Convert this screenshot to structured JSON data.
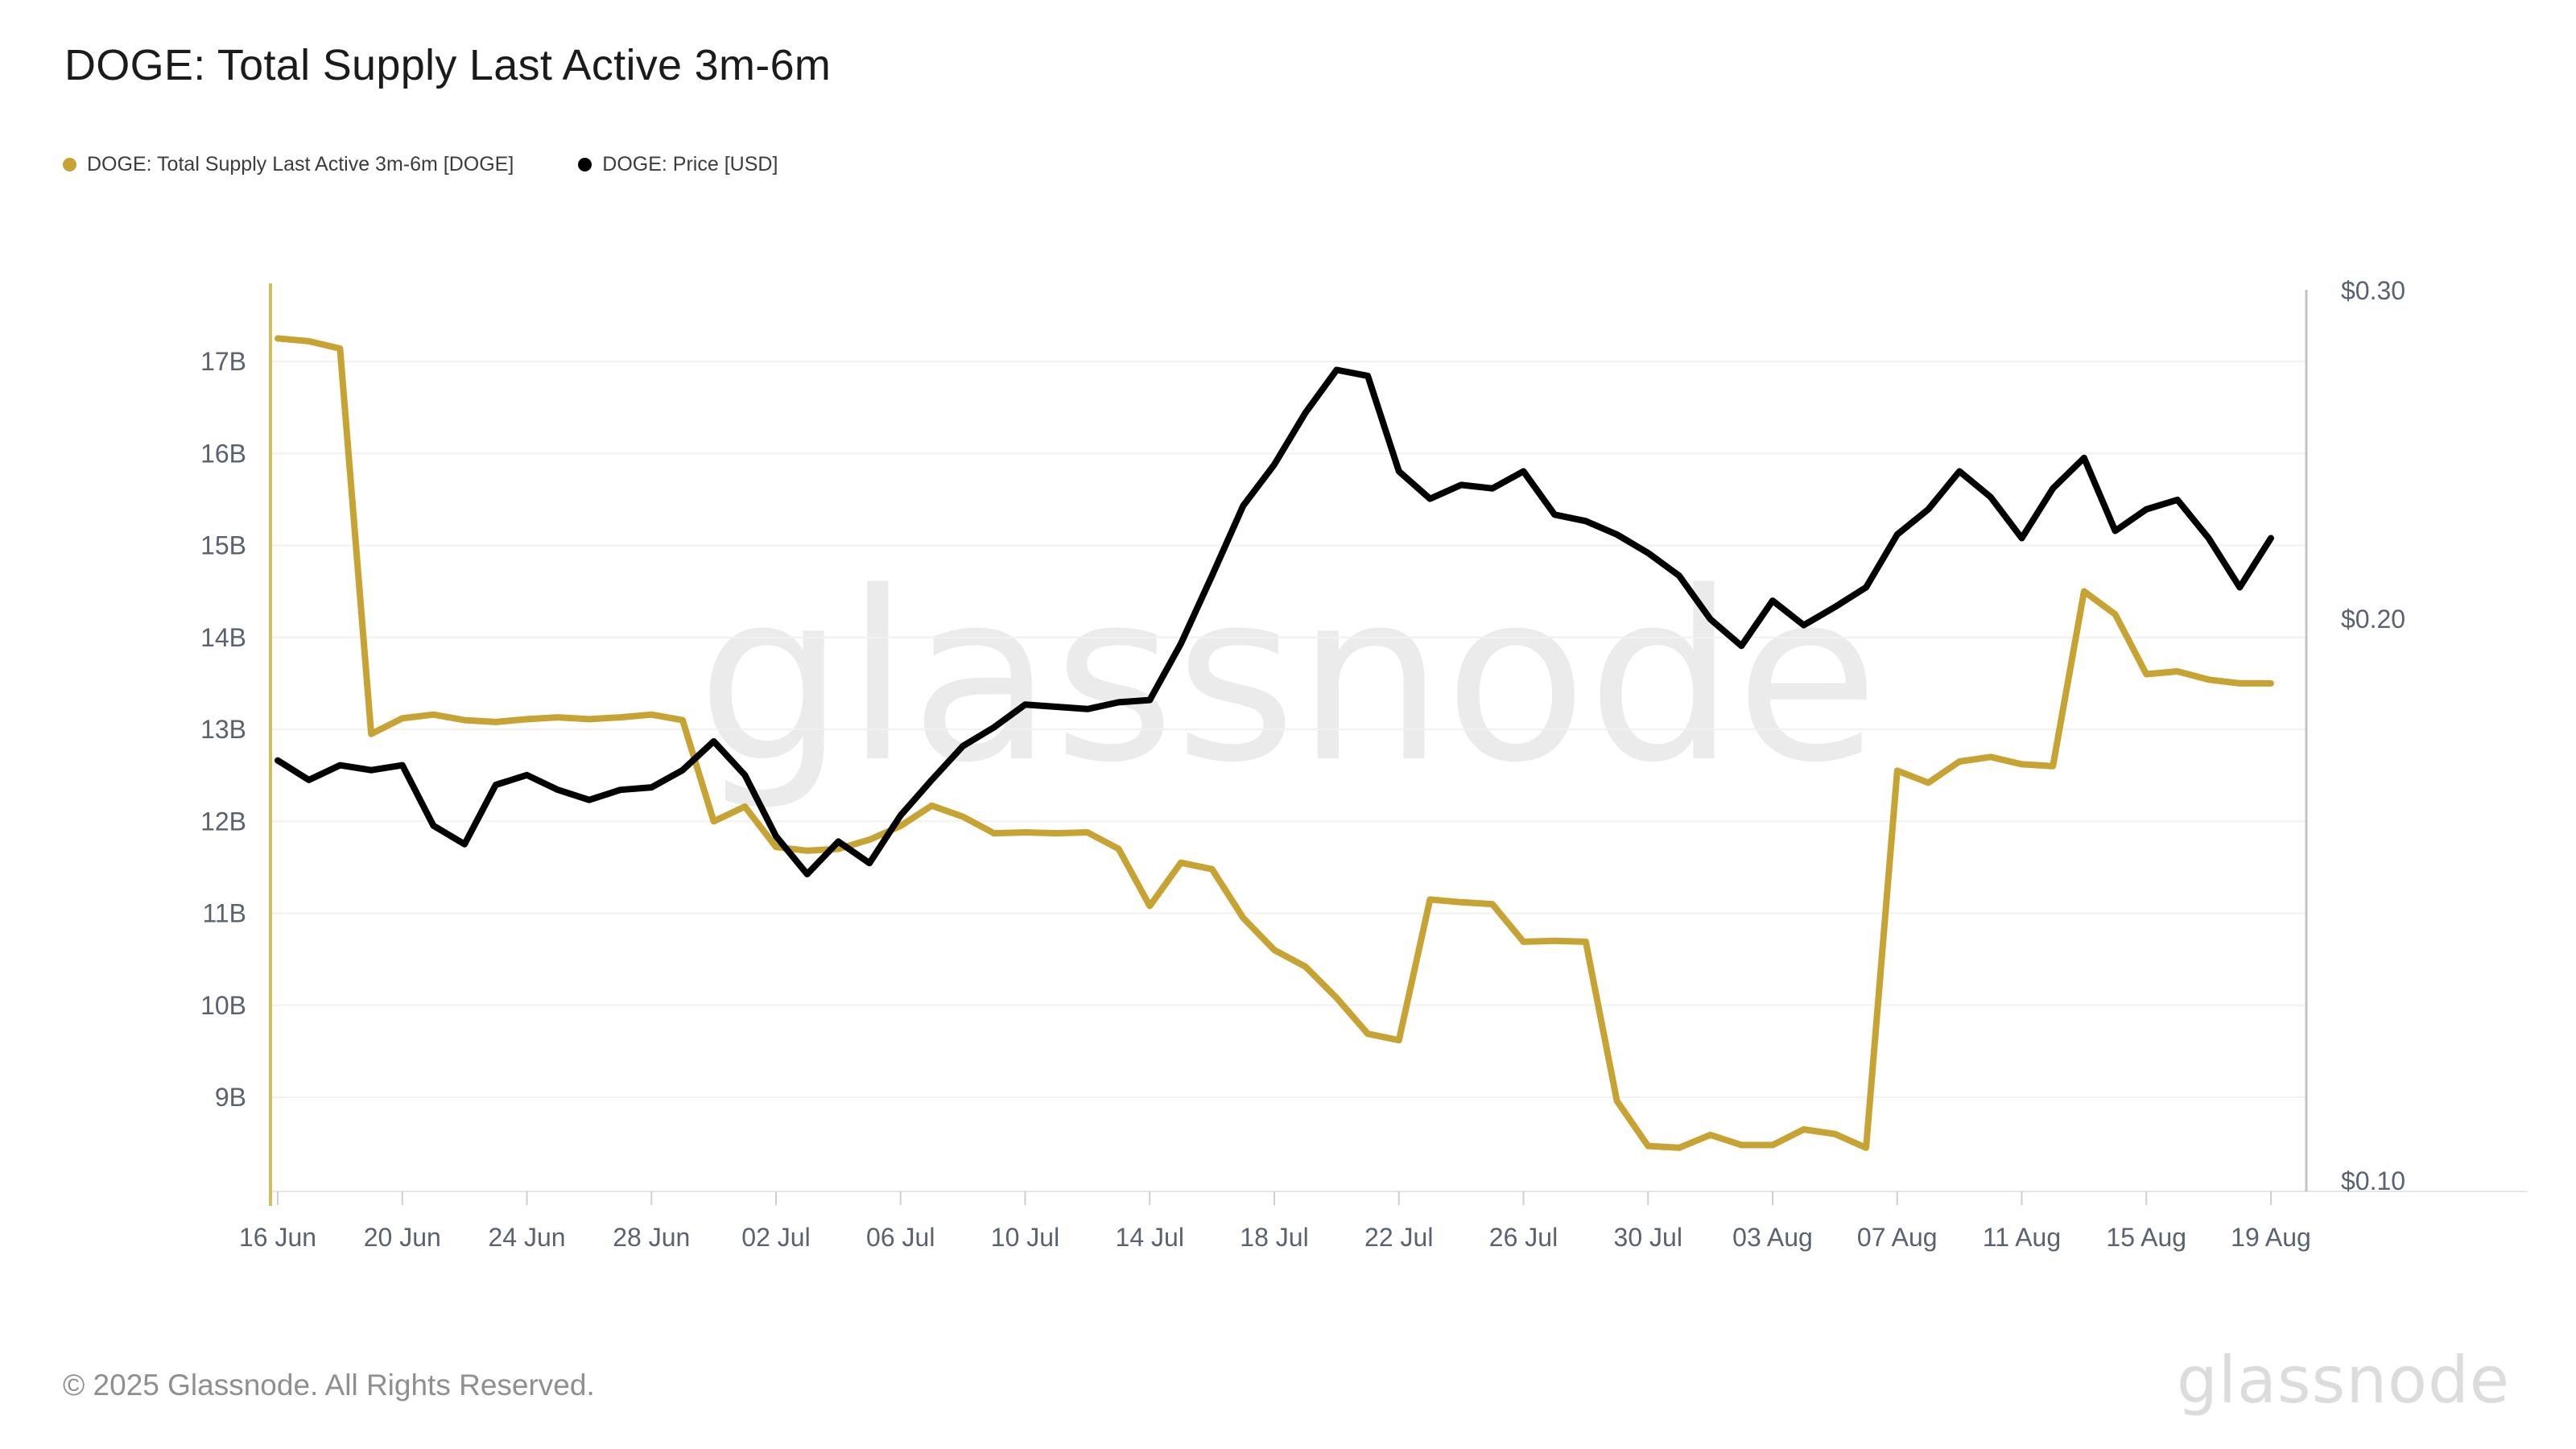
{
  "header": {
    "title": "DOGE: Total Supply Last Active 3m-6m"
  },
  "legend": {
    "items": [
      {
        "label": "DOGE: Total Supply Last Active 3m-6m [DOGE]",
        "color": "#c6a332"
      },
      {
        "label": "DOGE: Price [USD]",
        "color": "#000000"
      }
    ]
  },
  "watermark": "glassnode",
  "footer": {
    "copyright": "© 2025 Glassnode. All Rights Reserved.",
    "brand": "glassnode"
  },
  "colors": {
    "supply_gold": "#c6a332",
    "price_black": "#000000",
    "gridline": "#f1f1f1",
    "bottom_border": "#e7e7e7",
    "left_axis_line": "#d5bc60",
    "right_axis_line": "#c2c2c2",
    "tick_mark": "#cfcfcf",
    "tick_text": "#59626e",
    "watermark": "#ebebeb"
  },
  "chart_data": {
    "type": "line",
    "title": "DOGE: Total Supply Last Active 3m-6m",
    "x": [
      "16 Jun",
      "17 Jun",
      "18 Jun",
      "19 Jun",
      "20 Jun",
      "21 Jun",
      "22 Jun",
      "23 Jun",
      "24 Jun",
      "25 Jun",
      "26 Jun",
      "27 Jun",
      "28 Jun",
      "29 Jun",
      "30 Jun",
      "01 Jul",
      "02 Jul",
      "03 Jul",
      "04 Jul",
      "05 Jul",
      "06 Jul",
      "07 Jul",
      "08 Jul",
      "09 Jul",
      "10 Jul",
      "11 Jul",
      "12 Jul",
      "13 Jul",
      "14 Jul",
      "15 Jul",
      "16 Jul",
      "17 Jul",
      "18 Jul",
      "19 Jul",
      "20 Jul",
      "21 Jul",
      "22 Jul",
      "23 Jul",
      "24 Jul",
      "25 Jul",
      "26 Jul",
      "27 Jul",
      "28 Jul",
      "29 Jul",
      "30 Jul",
      "31 Jul",
      "01 Aug",
      "02 Aug",
      "03 Aug",
      "04 Aug",
      "05 Aug",
      "06 Aug",
      "07 Aug",
      "08 Aug",
      "09 Aug",
      "10 Aug",
      "11 Aug",
      "12 Aug",
      "13 Aug",
      "14 Aug",
      "15 Aug",
      "16 Aug",
      "17 Aug",
      "18 Aug",
      "19 Aug"
    ],
    "series": [
      {
        "name": "DOGE: Total Supply Last Active 3m-6m [DOGE]",
        "axis": "left",
        "unit": "billion DOGE",
        "color": "#c6a332",
        "values": [
          17.25,
          17.22,
          17.14,
          12.95,
          13.12,
          13.16,
          13.1,
          13.08,
          13.11,
          13.13,
          13.11,
          13.13,
          13.16,
          13.1,
          12.0,
          12.16,
          11.72,
          11.68,
          11.7,
          11.8,
          11.95,
          12.17,
          12.05,
          11.87,
          11.88,
          11.87,
          11.88,
          11.7,
          11.08,
          11.55,
          11.48,
          10.95,
          10.6,
          10.42,
          10.08,
          9.69,
          9.62,
          11.15,
          11.12,
          11.1,
          10.69,
          10.7,
          10.69,
          8.96,
          8.47,
          8.45,
          8.59,
          8.48,
          8.48,
          8.65,
          8.6,
          8.45,
          12.55,
          12.42,
          12.65,
          12.7,
          12.62,
          12.6,
          14.5,
          14.25,
          13.6,
          13.63,
          13.54,
          13.5,
          13.5
        ]
      },
      {
        "name": "DOGE: Price [USD]",
        "axis": "right",
        "unit": "USD",
        "color": "#000000",
        "values": [
          0.168,
          0.164,
          0.167,
          0.166,
          0.167,
          0.155,
          0.1515,
          0.163,
          0.165,
          0.162,
          0.16,
          0.162,
          0.1625,
          0.166,
          0.172,
          0.165,
          0.153,
          0.146,
          0.152,
          0.148,
          0.157,
          0.164,
          0.171,
          0.175,
          0.18,
          0.1795,
          0.179,
          0.1805,
          0.181,
          0.194,
          0.211,
          0.23,
          0.242,
          0.258,
          0.272,
          0.27,
          0.24,
          0.232,
          0.236,
          0.235,
          0.24,
          0.2275,
          0.2257,
          0.222,
          0.217,
          0.211,
          0.2,
          0.1935,
          0.2046,
          0.1985,
          0.203,
          0.208,
          0.222,
          0.229,
          0.24,
          0.2325,
          0.221,
          0.235,
          0.244,
          0.223,
          0.229,
          0.2317,
          0.221,
          0.208,
          0.221
        ]
      }
    ],
    "left_axis": {
      "scale": "linear",
      "ticks": [
        "17B",
        "16B",
        "15B",
        "14B",
        "13B",
        "12B",
        "11B",
        "10B",
        "9B"
      ],
      "tick_values": [
        17,
        16,
        15,
        14,
        13,
        12,
        11,
        10,
        9
      ],
      "ylim": [
        7.98,
        17.78
      ]
    },
    "right_axis": {
      "scale": "log",
      "ticks": [
        "$0.30",
        "$0.20",
        "$0.10"
      ],
      "tick_values": [
        0.3,
        0.2,
        0.1
      ],
      "ylim": [
        0.1,
        0.3
      ]
    },
    "x_tick_labels": [
      "16 Jun",
      "20 Jun",
      "24 Jun",
      "28 Jun",
      "02 Jul",
      "06 Jul",
      "10 Jul",
      "14 Jul",
      "18 Jul",
      "22 Jul",
      "26 Jul",
      "30 Jul",
      "03 Aug",
      "07 Aug",
      "11 Aug",
      "15 Aug",
      "19 Aug"
    ],
    "grid": "horizontal",
    "legend_position": "top-left"
  }
}
